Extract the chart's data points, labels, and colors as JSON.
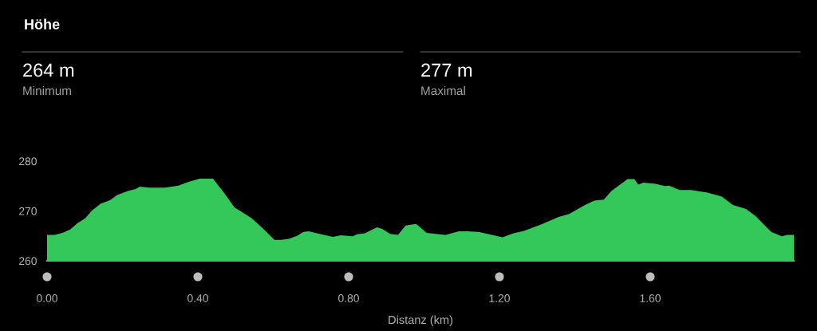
{
  "chart_data": {
    "type": "area",
    "title": "Höhe",
    "annotations": [
      "264 m",
      "Minimum",
      "277 m",
      "Maximal"
    ],
    "xlabel": "Distanz (km)",
    "color": "#34c759",
    "x": [
      0,
      0.02,
      0.041,
      0.062,
      0.08,
      0.101,
      0.119,
      0.143,
      0.168,
      0.186,
      0.214,
      0.235,
      0.246,
      0.271,
      0.313,
      0.348,
      0.377,
      0.405,
      0.44,
      0.469,
      0.497,
      0.514,
      0.543,
      0.571,
      0.603,
      0.62,
      0.641,
      0.663,
      0.68,
      0.694,
      0.716,
      0.758,
      0.779,
      0.811,
      0.822,
      0.843,
      0.875,
      0.889,
      0.91,
      0.931,
      0.951,
      0.979,
      1.007,
      1.057,
      1.092,
      1.113,
      1.145,
      1.18,
      1.208,
      1.237,
      1.265,
      1.279,
      1.314,
      1.357,
      1.385,
      1.427,
      1.452,
      1.477,
      1.498,
      1.54,
      1.558,
      1.568,
      1.582,
      1.611,
      1.639,
      1.65,
      1.678,
      1.709,
      1.752,
      1.79,
      1.819,
      1.854,
      1.879,
      1.921,
      1.949,
      1.963,
      1.981
    ],
    "values": [
      265.2,
      265.2,
      265.6,
      266.3,
      267.5,
      268.5,
      270.1,
      271.5,
      272.2,
      273.2,
      274.0,
      274.4,
      274.9,
      274.7,
      274.7,
      275.1,
      275.9,
      276.5,
      276.5,
      273.7,
      270.7,
      269.9,
      268.5,
      266.6,
      264.2,
      264.2,
      264.4,
      265.0,
      265.8,
      265.9,
      265.5,
      264.8,
      265.1,
      264.9,
      265.3,
      265.5,
      266.7,
      266.4,
      265.4,
      265.2,
      267.1,
      267.4,
      265.6,
      265.2,
      265.9,
      265.9,
      265.8,
      265.2,
      264.7,
      265.5,
      266.0,
      266.4,
      267.4,
      268.8,
      269.4,
      271.2,
      272.1,
      272.3,
      274.1,
      276.4,
      276.4,
      275.3,
      275.7,
      275.5,
      275.0,
      275.1,
      274.2,
      274.2,
      273.7,
      272.9,
      271.2,
      270.4,
      269.0,
      265.8,
      264.9,
      265.2,
      265.2
    ],
    "xlim": [
      0,
      1.981
    ],
    "ylim": [
      260,
      280
    ],
    "xticks": [
      {
        "value": 0,
        "label": "0.00"
      },
      {
        "value": 0.4,
        "label": "0.40"
      },
      {
        "value": 0.8,
        "label": "0.80"
      },
      {
        "value": 1.2,
        "label": "1.20"
      },
      {
        "value": 1.6,
        "label": "1.60"
      }
    ],
    "yticks": [
      260,
      270,
      280
    ]
  }
}
